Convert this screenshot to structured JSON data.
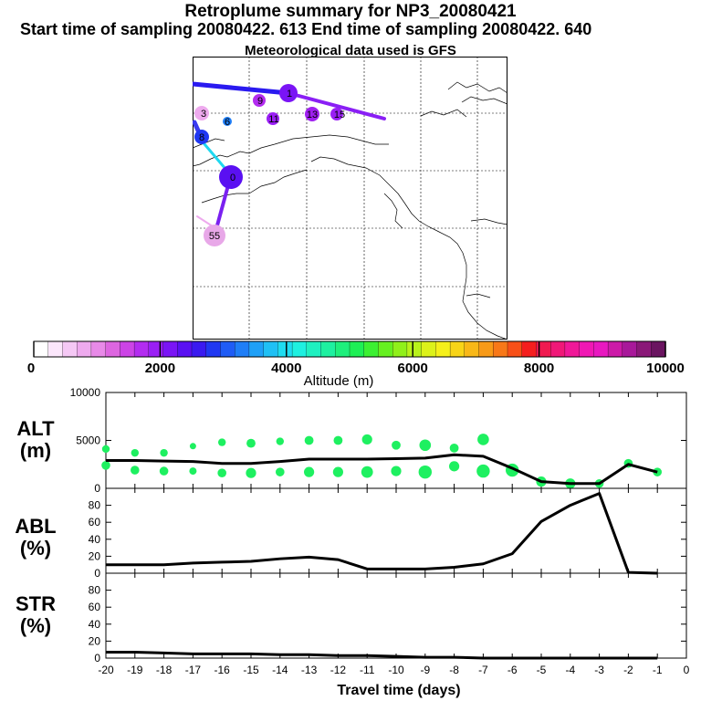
{
  "header": {
    "title": "Retroplume summary for NP3_20080421",
    "sampling_line": "Start time of sampling 20080422.   613     End time of sampling 20080422.   640",
    "met_line": "Meteorological data used is GFS"
  },
  "colorbar": {
    "label": "Altitude (m)",
    "ticks": [
      "0",
      "2000",
      "4000",
      "6000",
      "8000",
      "10000"
    ],
    "colors": [
      "#ffffff",
      "#fbe6fb",
      "#f5c8f5",
      "#eeaaee",
      "#e88ae8",
      "#dd66e0",
      "#cc44e6",
      "#b32cf0",
      "#9a1ff5",
      "#7a14f5",
      "#5a10f2",
      "#3a1af0",
      "#2038f2",
      "#1f5cf5",
      "#1f7ef7",
      "#1fa0f7",
      "#1fc0f5",
      "#1fdcf0",
      "#1ef0e0",
      "#1ff0c0",
      "#1ef0a0",
      "#1eef7c",
      "#1eef55",
      "#3cf032",
      "#66f020",
      "#90f01a",
      "#b8f21a",
      "#dcf21a",
      "#f5f01a",
      "#f8d418",
      "#f8b818",
      "#f89a18",
      "#f87818",
      "#f85018",
      "#f51e1e",
      "#f01a50",
      "#f01878",
      "#f01898",
      "#f018b4",
      "#e818c0",
      "#cc1aa8",
      "#a8189a",
      "#8a1878",
      "#6a1460"
    ]
  },
  "map": {
    "points": [
      {
        "label": "1",
        "alt_m": 2200
      },
      {
        "label": "9",
        "alt_m": 1300
      },
      {
        "label": "3",
        "alt_m": 900
      },
      {
        "label": "15",
        "alt_m": 1200
      },
      {
        "label": "13",
        "alt_m": 1300
      },
      {
        "label": "11",
        "alt_m": 1200
      },
      {
        "label": "6",
        "alt_m": 2800
      },
      {
        "label": "8",
        "alt_m": 2500
      },
      {
        "label": "0",
        "alt_m": 2300
      },
      {
        "label": "55",
        "alt_m": 700
      }
    ]
  },
  "chart_data": [
    {
      "type": "line",
      "panel": "ALT",
      "ylabel": "ALT (m)",
      "ylim": [
        0,
        10000
      ],
      "yticks": [
        0,
        5000,
        10000
      ],
      "x": [
        -20,
        -19,
        -18,
        -17,
        -16,
        -15,
        -14,
        -13,
        -12,
        -11,
        -10,
        -9,
        -8,
        -7,
        -6,
        -5,
        -4,
        -3,
        -2,
        -1
      ],
      "series": [
        {
          "name": "median altitude",
          "values": [
            2900,
            2900,
            2850,
            2800,
            2600,
            2600,
            2800,
            3050,
            3050,
            3050,
            3100,
            3150,
            3500,
            3350,
            2100,
            700,
            500,
            500,
            2500,
            1700
          ]
        }
      ],
      "dots_upper": [
        4100,
        3700,
        3700,
        4400,
        4800,
        4700,
        4900,
        5000,
        5000,
        5100,
        4500,
        4500,
        4200,
        5100,
        null,
        null,
        null,
        null,
        null,
        null
      ],
      "dots_lower": [
        2400,
        1900,
        1800,
        1800,
        1600,
        1600,
        1700,
        1700,
        1700,
        1700,
        1800,
        1700,
        2300,
        1800,
        1900,
        700,
        500,
        500,
        2600,
        1700
      ],
      "dot_sizes": [
        6,
        6,
        6,
        5,
        6,
        7,
        6,
        7,
        7,
        8,
        7,
        9,
        7,
        9,
        9,
        7,
        7,
        6,
        6,
        6
      ]
    },
    {
      "type": "line",
      "panel": "ABL",
      "ylabel": "ABL (%)",
      "ylim": [
        0,
        100
      ],
      "yticks": [
        0,
        20,
        40,
        60,
        80
      ],
      "x": [
        -20,
        -19,
        -18,
        -17,
        -16,
        -15,
        -14,
        -13,
        -12,
        -11,
        -10,
        -9,
        -8,
        -7,
        -6,
        -5,
        -4,
        -3,
        -2,
        -1
      ],
      "series": [
        {
          "name": "ABL fraction",
          "values": [
            10,
            10,
            10,
            12,
            13,
            14,
            17,
            19,
            16,
            5,
            5,
            5,
            7,
            11,
            23,
            61,
            80,
            94,
            1,
            0
          ]
        }
      ]
    },
    {
      "type": "line",
      "panel": "STR",
      "ylabel": "STR (%)",
      "ylim": [
        0,
        100
      ],
      "yticks": [
        0,
        20,
        40,
        60,
        80
      ],
      "x": [
        -20,
        -19,
        -18,
        -17,
        -16,
        -15,
        -14,
        -13,
        -12,
        -11,
        -10,
        -9,
        -8,
        -7,
        -6,
        -5,
        -4,
        -3,
        -2,
        -1
      ],
      "xlabel": "Travel time (days)",
      "xticks": [
        "-20",
        "-19",
        "-18",
        "-17",
        "-16",
        "-15",
        "-14",
        "-13",
        "-12",
        "-11",
        "-10",
        "-9",
        "-8",
        "-7",
        "-6",
        "-5",
        "-4",
        "-3",
        "-2",
        "-1",
        "0"
      ],
      "series": [
        {
          "name": "stratospheric fraction",
          "values": [
            7,
            7,
            6,
            5,
            5,
            5,
            4,
            4,
            3,
            3,
            2,
            1,
            1,
            0,
            0,
            0,
            0,
            0,
            0,
            0
          ]
        }
      ]
    }
  ]
}
